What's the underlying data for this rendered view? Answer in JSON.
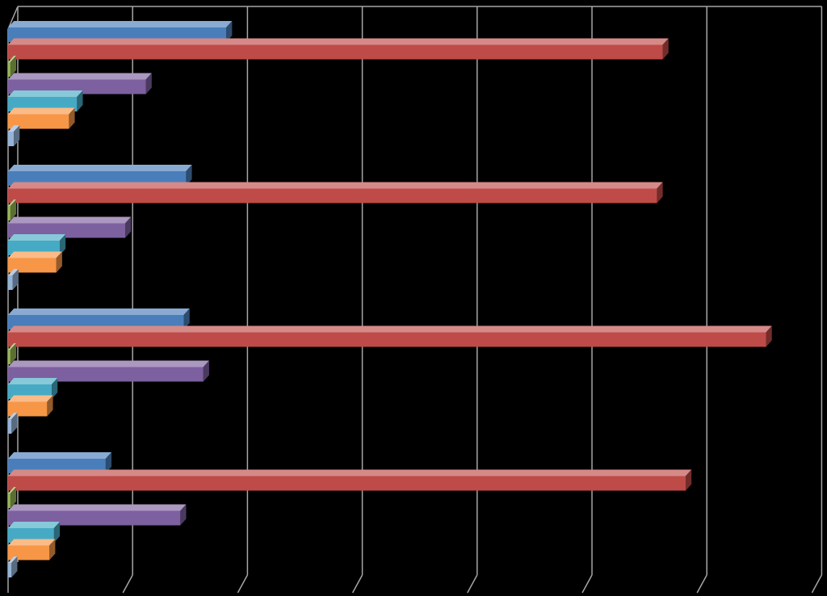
{
  "chart_data": {
    "type": "bar",
    "orientation": "horizontal",
    "style": "3d-clustered",
    "categories": [
      "",
      "",
      "",
      ""
    ],
    "xlim": [
      0,
      7
    ],
    "grid": true,
    "legend": "none",
    "series": [
      {
        "color": "#4a7ebb",
        "values": [
          1.9,
          1.55,
          1.53,
          0.85
        ]
      },
      {
        "color": "#be4b48",
        "values": [
          5.7,
          5.65,
          6.6,
          5.9
        ]
      },
      {
        "color": "#98b954",
        "values": [
          0.02,
          0.02,
          0.02,
          0.02
        ]
      },
      {
        "color": "#7d60a0",
        "values": [
          1.2,
          1.02,
          1.7,
          1.5
        ]
      },
      {
        "color": "#46aac5",
        "values": [
          0.6,
          0.45,
          0.38,
          0.4
        ]
      },
      {
        "color": "#f79646",
        "values": [
          0.53,
          0.42,
          0.34,
          0.36
        ]
      },
      {
        "color": "#95b3d7",
        "values": [
          0.05,
          0.04,
          0.03,
          0.03
        ]
      }
    ]
  }
}
